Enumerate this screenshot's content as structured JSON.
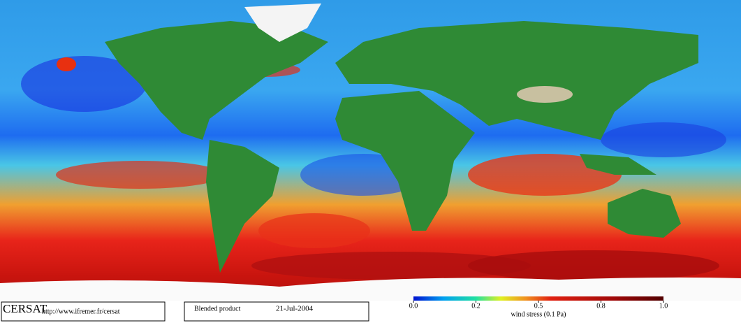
{
  "map": {
    "logo": "CERSAT",
    "url": "http://www.ifremer.fr/cersat",
    "product": "Blended product",
    "date": "21-Jul-2004",
    "colorbar": {
      "label": "wind stress (0.1 Pa)",
      "ticks": [
        {
          "value": 0,
          "label": "0.0"
        },
        0.2,
        0.5,
        0.8,
        {
          "value": 1,
          "label": "1.0"
        }
      ]
    }
  }
}
